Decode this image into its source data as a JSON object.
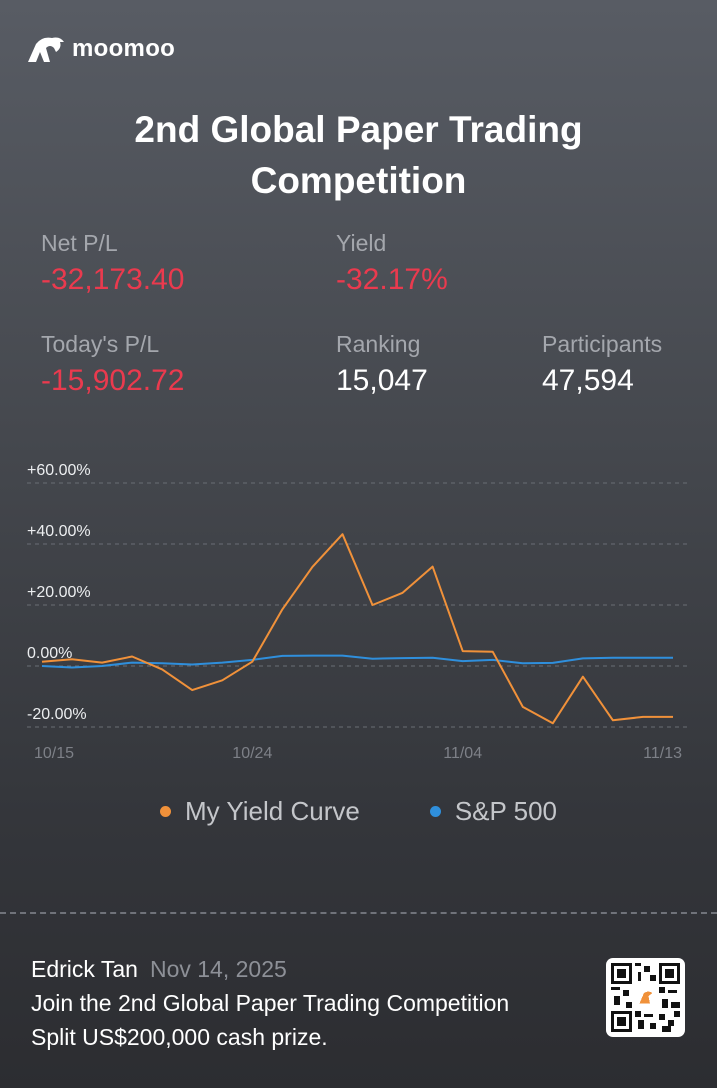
{
  "brand": {
    "name": "moomoo"
  },
  "title": "2nd Global Paper Trading Competition",
  "stats": {
    "net_pl": {
      "label": "Net P/L",
      "value": "-32,173.40"
    },
    "yield": {
      "label": "Yield",
      "value": "-32.17%"
    },
    "todays_pl": {
      "label": "Today's P/L",
      "value": "-15,902.72"
    },
    "ranking": {
      "label": "Ranking",
      "value": "15,047"
    },
    "participants": {
      "label": "Participants",
      "value": "47,594"
    }
  },
  "colors": {
    "negative": "#ea3a4e",
    "my_curve": "#f0913a",
    "sp500": "#2f8fdc"
  },
  "chart_data": {
    "type": "line",
    "x": [
      "10/15",
      "10/16",
      "10/17",
      "10/20",
      "10/21",
      "10/22",
      "10/23",
      "10/24",
      "10/27",
      "10/28",
      "10/29",
      "10/30",
      "10/31",
      "11/03",
      "11/04",
      "11/05",
      "11/06",
      "11/07",
      "11/10",
      "11/11",
      "11/12",
      "11/13"
    ],
    "x_tick_labels": [
      "10/15",
      "10/24",
      "11/04",
      "11/13"
    ],
    "y_tick_labels": [
      "+60.00%",
      "+40.00%",
      "+20.00%",
      "0.00%",
      "-20.00%"
    ],
    "ylim": [
      -20,
      60
    ],
    "grid": true,
    "legend": "bottom",
    "series": [
      {
        "name": "My Yield Curve",
        "values": [
          1.4,
          2.2,
          1.1,
          3.1,
          -1.1,
          -7.9,
          -4.7,
          1.4,
          18.6,
          32.5,
          43.2,
          20.0,
          24.0,
          32.6,
          4.9,
          4.7,
          -13.4,
          -18.8,
          -3.5,
          -17.8,
          -16.7,
          -16.7
        ]
      },
      {
        "name": "S&P 500",
        "values": [
          0.0,
          -0.5,
          0.0,
          1.1,
          0.9,
          0.5,
          1.1,
          2.0,
          3.3,
          3.4,
          3.4,
          2.4,
          2.6,
          2.7,
          1.6,
          2.0,
          0.9,
          1.0,
          2.5,
          2.7,
          2.7,
          2.7
        ]
      }
    ]
  },
  "footer": {
    "user": "Edrick Tan",
    "date": "Nov 14, 2025",
    "line1": "Join the 2nd Global Paper Trading Competition",
    "line2": "Split US$200,000 cash prize."
  }
}
